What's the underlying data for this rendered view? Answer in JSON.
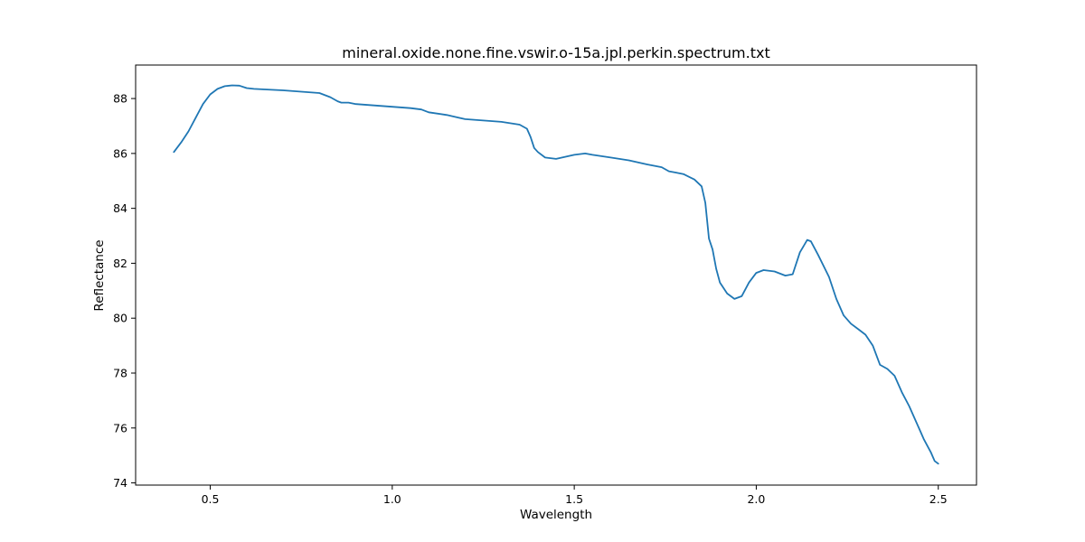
{
  "chart_data": {
    "type": "line",
    "title": "mineral.oxide.none.fine.vswir.o-15a.jpl.perkin.spectrum.txt",
    "xlabel": "Wavelength",
    "ylabel": "Reflectance",
    "xlim": [
      0.295,
      2.605
    ],
    "ylim": [
      73.92,
      89.22
    ],
    "xticks": [
      0.5,
      1.0,
      1.5,
      2.0,
      2.5
    ],
    "xtick_labels": [
      "0.5",
      "1.0",
      "1.5",
      "2.0",
      "2.5"
    ],
    "yticks": [
      74,
      76,
      78,
      80,
      82,
      84,
      86,
      88
    ],
    "ytick_labels": [
      "74",
      "76",
      "78",
      "80",
      "82",
      "84",
      "86",
      "88"
    ],
    "grid": false,
    "legend": "none",
    "series": [
      {
        "color": "#1f77b4",
        "x": [
          0.4,
          0.42,
          0.44,
          0.46,
          0.48,
          0.5,
          0.52,
          0.54,
          0.56,
          0.58,
          0.6,
          0.62,
          0.65,
          0.7,
          0.75,
          0.8,
          0.83,
          0.85,
          0.86,
          0.88,
          0.9,
          0.95,
          1.0,
          1.05,
          1.08,
          1.1,
          1.15,
          1.2,
          1.25,
          1.3,
          1.35,
          1.37,
          1.38,
          1.39,
          1.4,
          1.42,
          1.45,
          1.5,
          1.53,
          1.55,
          1.6,
          1.65,
          1.7,
          1.74,
          1.76,
          1.78,
          1.8,
          1.83,
          1.85,
          1.86,
          1.87,
          1.88,
          1.89,
          1.9,
          1.92,
          1.94,
          1.96,
          1.98,
          2.0,
          2.02,
          2.05,
          2.08,
          2.1,
          2.12,
          2.14,
          2.15,
          2.17,
          2.2,
          2.22,
          2.24,
          2.26,
          2.28,
          2.3,
          2.32,
          2.34,
          2.36,
          2.38,
          2.4,
          2.42,
          2.44,
          2.46,
          2.48,
          2.49,
          2.5
        ],
        "y": [
          86.05,
          86.4,
          86.8,
          87.3,
          87.8,
          88.15,
          88.35,
          88.45,
          88.48,
          88.47,
          88.38,
          88.35,
          88.33,
          88.3,
          88.25,
          88.2,
          88.05,
          87.9,
          87.85,
          87.85,
          87.8,
          87.75,
          87.7,
          87.65,
          87.6,
          87.5,
          87.4,
          87.25,
          87.2,
          87.15,
          87.05,
          86.9,
          86.6,
          86.2,
          86.05,
          85.85,
          85.8,
          85.95,
          86.0,
          85.95,
          85.85,
          85.75,
          85.6,
          85.5,
          85.35,
          85.3,
          85.25,
          85.05,
          84.8,
          84.2,
          82.9,
          82.5,
          81.8,
          81.3,
          80.9,
          80.7,
          80.8,
          81.3,
          81.65,
          81.75,
          81.7,
          81.55,
          81.6,
          82.4,
          82.85,
          82.8,
          82.3,
          81.5,
          80.7,
          80.1,
          79.8,
          79.6,
          79.4,
          79.0,
          78.3,
          78.15,
          77.9,
          77.3,
          76.8,
          76.2,
          75.6,
          75.1,
          74.8,
          74.7
        ]
      }
    ]
  }
}
